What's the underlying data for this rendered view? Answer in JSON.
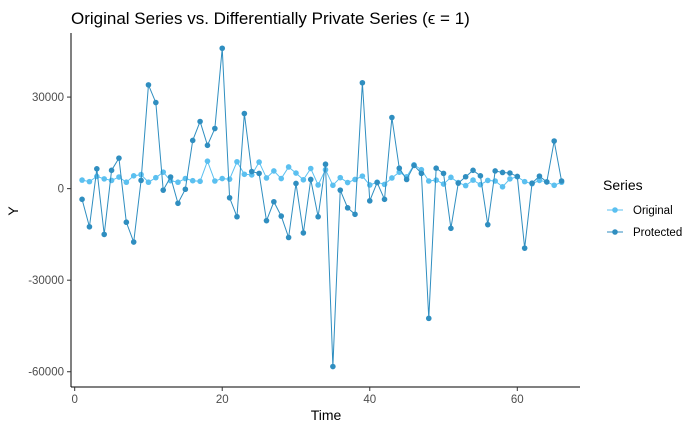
{
  "chart_data": {
    "type": "line",
    "title": "Original Series vs. Differentially Private Series (ϵ = 1)",
    "xlabel": "Time",
    "ylabel": "Y",
    "xlim": [
      -0.5,
      68.5
    ],
    "ylim": [
      -65000,
      51000
    ],
    "xticks": [
      0,
      20,
      40,
      60
    ],
    "yticks": [
      -60000,
      -30000,
      0,
      30000
    ],
    "ytick_labels": [
      "-60000",
      "-30000",
      "0",
      "30000"
    ],
    "grid": false,
    "legend": {
      "title": "Series",
      "position": "right",
      "entries": [
        "Original",
        "Protected"
      ]
    },
    "series": [
      {
        "name": "Original",
        "color": "#5bc0f0",
        "x": [
          1,
          2,
          3,
          4,
          5,
          6,
          7,
          8,
          9,
          10,
          11,
          12,
          13,
          14,
          15,
          16,
          17,
          18,
          19,
          20,
          21,
          22,
          23,
          24,
          25,
          26,
          27,
          28,
          29,
          30,
          31,
          32,
          33,
          34,
          35,
          36,
          37,
          38,
          39,
          40,
          41,
          42,
          43,
          44,
          45,
          46,
          47,
          48,
          49,
          50,
          51,
          52,
          53,
          54,
          55,
          56,
          57,
          58,
          59,
          60,
          61,
          62,
          63,
          64,
          65,
          66
        ],
        "values": [
          2800,
          2300,
          4000,
          3200,
          2700,
          3800,
          2100,
          4200,
          4600,
          2100,
          3600,
          5400,
          2600,
          2100,
          3300,
          2600,
          2400,
          9000,
          2500,
          3300,
          3100,
          8800,
          4700,
          4500,
          8700,
          3500,
          5800,
          3300,
          7100,
          5100,
          2900,
          6600,
          1200,
          6200,
          1100,
          3600,
          2000,
          3000,
          4100,
          1200,
          2100,
          1400,
          3500,
          5400,
          3900,
          7800,
          6200,
          2500,
          2800,
          1500,
          3700,
          2000,
          1000,
          2800,
          1300,
          2700,
          2500,
          600,
          3200,
          3900,
          2300,
          1600,
          2700,
          2200,
          1100,
          2100
        ]
      },
      {
        "name": "Protected",
        "color": "#2f8ec0",
        "x": [
          1,
          2,
          3,
          4,
          5,
          6,
          7,
          8,
          9,
          10,
          11,
          12,
          13,
          14,
          15,
          16,
          17,
          18,
          19,
          20,
          21,
          22,
          23,
          24,
          25,
          26,
          27,
          28,
          29,
          30,
          31,
          32,
          33,
          34,
          35,
          36,
          37,
          38,
          39,
          40,
          41,
          42,
          43,
          44,
          45,
          46,
          47,
          48,
          49,
          50,
          51,
          52,
          53,
          54,
          55,
          56,
          57,
          58,
          59,
          60,
          61,
          62,
          63,
          64,
          65,
          66
        ],
        "values": [
          -3500,
          -12500,
          6500,
          -15000,
          6000,
          10000,
          -11000,
          -17500,
          2700,
          34000,
          28200,
          -500,
          3800,
          -4800,
          -200,
          15800,
          22000,
          14200,
          19700,
          46000,
          -3000,
          -9200,
          24600,
          5600,
          5000,
          -10500,
          -4300,
          -9000,
          -16000,
          1700,
          -14500,
          3000,
          -9200,
          8000,
          -58300,
          -500,
          -6300,
          -8400,
          34700,
          -4000,
          2000,
          -3500,
          23300,
          6700,
          3000,
          7600,
          5000,
          -42500,
          6700,
          5000,
          -13000,
          1800,
          3900,
          6000,
          4200,
          -11800,
          5800,
          5300,
          5100,
          4000,
          -19500,
          1800,
          4100,
          2200,
          15600,
          2500
        ]
      }
    ]
  }
}
